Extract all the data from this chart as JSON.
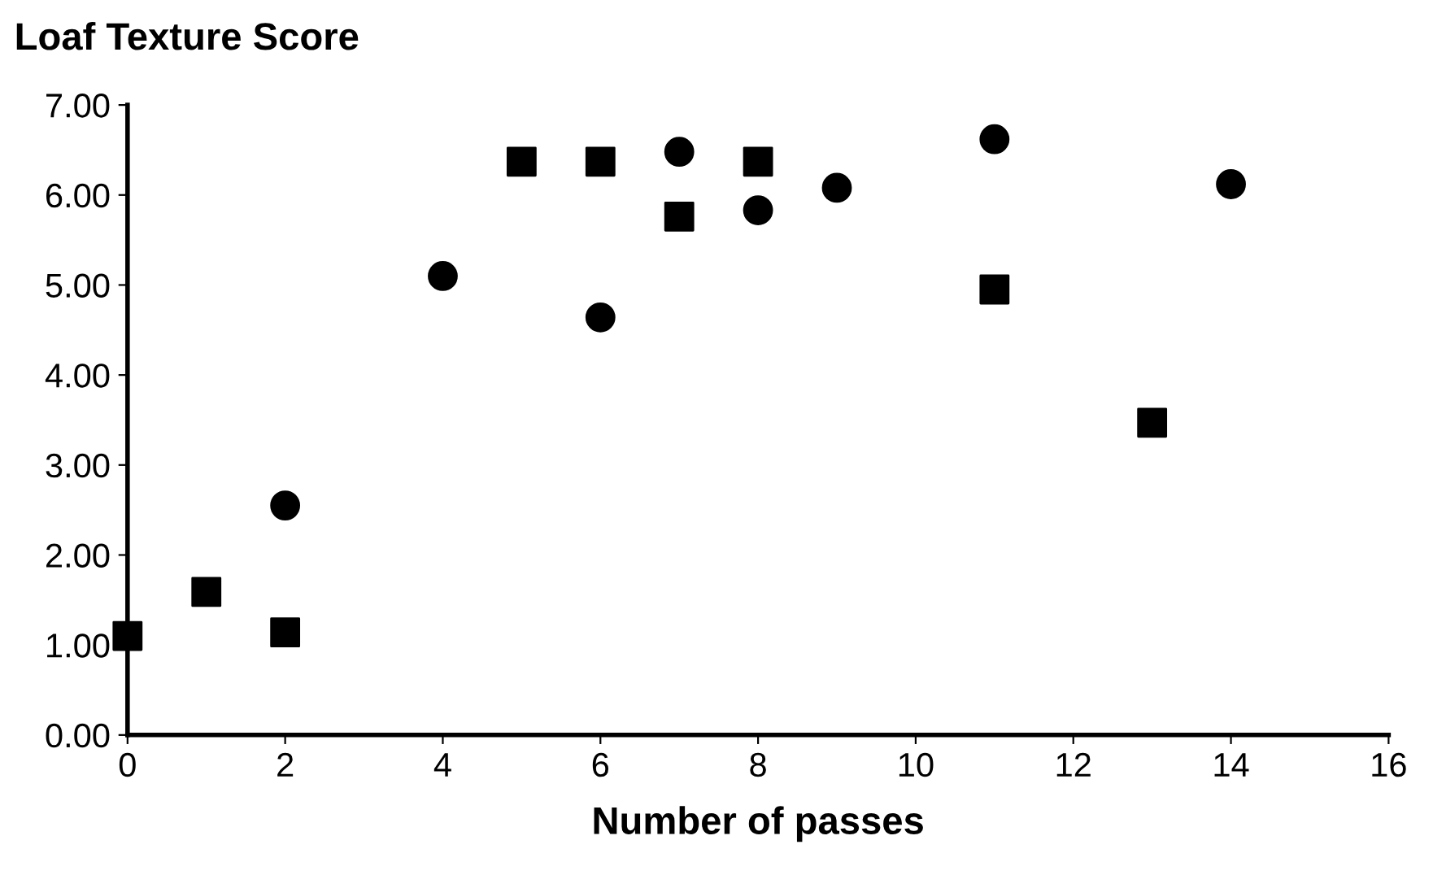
{
  "chart_data": {
    "type": "scatter",
    "ylabel": "Loaf Texture Score",
    "xlabel": "Number of passes",
    "series": [
      {
        "color": "#000000",
        "marker": "circle",
        "x": [
          2,
          4,
          6,
          7,
          8,
          9,
          11,
          14
        ],
        "values": [
          2.55,
          5.1,
          4.64,
          6.48,
          5.83,
          6.08,
          6.62,
          6.12
        ]
      },
      {
        "color": "#000000",
        "marker": "square",
        "x": [
          0,
          1,
          2,
          5,
          6,
          7,
          8,
          11,
          13
        ],
        "values": [
          1.1,
          1.59,
          1.14,
          6.37,
          6.37,
          5.76,
          6.37,
          4.95,
          3.47
        ]
      }
    ],
    "xlim": [
      0,
      16
    ],
    "xticks": [
      0,
      2,
      4,
      6,
      8,
      10,
      12,
      14,
      16
    ],
    "ylim": [
      0,
      7
    ],
    "yticks": [
      {
        "value": 0,
        "label": "0.00"
      },
      {
        "value": 1,
        "label": "1.00"
      },
      {
        "value": 2,
        "label": "2.00"
      },
      {
        "value": 3,
        "label": "3.00"
      },
      {
        "value": 4,
        "label": "4.00"
      },
      {
        "value": 5,
        "label": "5.00"
      },
      {
        "value": 6,
        "label": "6.00"
      },
      {
        "value": 7,
        "label": "7.00"
      }
    ],
    "grid": false,
    "legend": false
  }
}
